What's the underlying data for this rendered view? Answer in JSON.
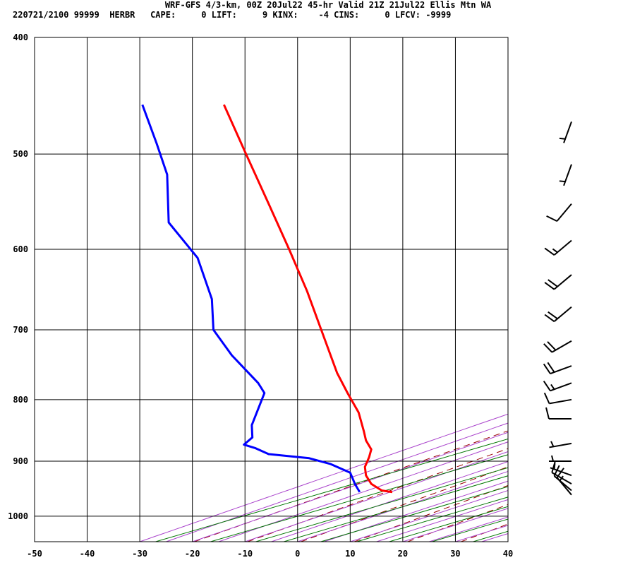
{
  "header": {
    "title": "WRF-GFS 4/3-km, 00Z 20Jul22 45-hr Valid 21Z 21Jul22 Ellis Mtn WA",
    "subtitle": "220721/2100 99999  HERBR   CAPE:     0 LIFT:     9 KINX:    -4 CINS:     0 LFCV: -9999"
  },
  "chart_data": {
    "type": "line",
    "title": "",
    "xlabel": "",
    "ylabel": "",
    "xlim": [
      -50,
      40
    ],
    "ylim": [
      1050,
      400
    ],
    "y_scale": "log",
    "x_ticks": [
      -50,
      -40,
      -30,
      -20,
      -10,
      0,
      10,
      20,
      30,
      40
    ],
    "y_ticks": [
      400,
      500,
      600,
      700,
      800,
      900,
      1000
    ],
    "grid": true,
    "colors": {
      "temperature": "#ff0000",
      "dewpoint": "#0000ff",
      "dry_adiabat": "#990000",
      "moist_adiabat": "#aa44cc",
      "mixing_ratio": "#007700",
      "barb": "#000000"
    },
    "series": [
      {
        "values": [
          {
            "p": 955,
            "t": 18.0
          },
          {
            "p": 952,
            "t": 16.0
          },
          {
            "p": 940,
            "t": 14.0
          },
          {
            "p": 925,
            "t": 13.0
          },
          {
            "p": 910,
            "t": 12.8
          },
          {
            "p": 893,
            "t": 13.6
          },
          {
            "p": 880,
            "t": 14.0
          },
          {
            "p": 865,
            "t": 13.0
          },
          {
            "p": 850,
            "t": 12.6
          },
          {
            "p": 820,
            "t": 11.6
          },
          {
            "p": 790,
            "t": 9.5
          },
          {
            "p": 760,
            "t": 7.5
          },
          {
            "p": 700,
            "t": 4.5
          },
          {
            "p": 650,
            "t": 1.8
          },
          {
            "p": 600,
            "t": -1.6
          },
          {
            "p": 550,
            "t": -5.5
          },
          {
            "p": 500,
            "t": -9.8
          },
          {
            "p": 455,
            "t": -14.0
          }
        ]
      },
      {
        "values": [
          {
            "p": 955,
            "t": 11.8
          },
          {
            "p": 940,
            "t": 10.9
          },
          {
            "p": 920,
            "t": 10.0
          },
          {
            "p": 905,
            "t": 6.3
          },
          {
            "p": 895,
            "t": 2.2
          },
          {
            "p": 888,
            "t": -5.5
          },
          {
            "p": 878,
            "t": -8.0
          },
          {
            "p": 872,
            "t": -10.2
          },
          {
            "p": 860,
            "t": -8.6
          },
          {
            "p": 840,
            "t": -8.7
          },
          {
            "p": 790,
            "t": -6.3
          },
          {
            "p": 775,
            "t": -7.5
          },
          {
            "p": 735,
            "t": -12.5
          },
          {
            "p": 700,
            "t": -16.0
          },
          {
            "p": 660,
            "t": -16.3
          },
          {
            "p": 610,
            "t": -19.0
          },
          {
            "p": 570,
            "t": -24.5
          },
          {
            "p": 520,
            "t": -24.8
          },
          {
            "p": 490,
            "t": -26.8
          },
          {
            "p": 455,
            "t": -29.5
          }
        ]
      }
    ],
    "wind_barbs": [
      {
        "p": 960,
        "dir": 320,
        "spd": 15
      },
      {
        "p": 952,
        "dir": 310,
        "spd": 10
      },
      {
        "p": 940,
        "dir": 300,
        "spd": 10
      },
      {
        "p": 925,
        "dir": 290,
        "spd": 5
      },
      {
        "p": 900,
        "dir": 270,
        "spd": 5
      },
      {
        "p": 870,
        "dir": 260,
        "spd": 5
      },
      {
        "p": 830,
        "dir": 270,
        "spd": 10
      },
      {
        "p": 800,
        "dir": 260,
        "spd": 10
      },
      {
        "p": 775,
        "dir": 250,
        "spd": 15
      },
      {
        "p": 750,
        "dir": 250,
        "spd": 20
      },
      {
        "p": 715,
        "dir": 240,
        "spd": 20
      },
      {
        "p": 670,
        "dir": 230,
        "spd": 20
      },
      {
        "p": 630,
        "dir": 230,
        "spd": 20
      },
      {
        "p": 590,
        "dir": 230,
        "spd": 15
      },
      {
        "p": 550,
        "dir": 220,
        "spd": 10
      },
      {
        "p": 510,
        "dir": 200,
        "spd": 5
      },
      {
        "p": 470,
        "dir": 200,
        "spd": 5
      }
    ]
  }
}
